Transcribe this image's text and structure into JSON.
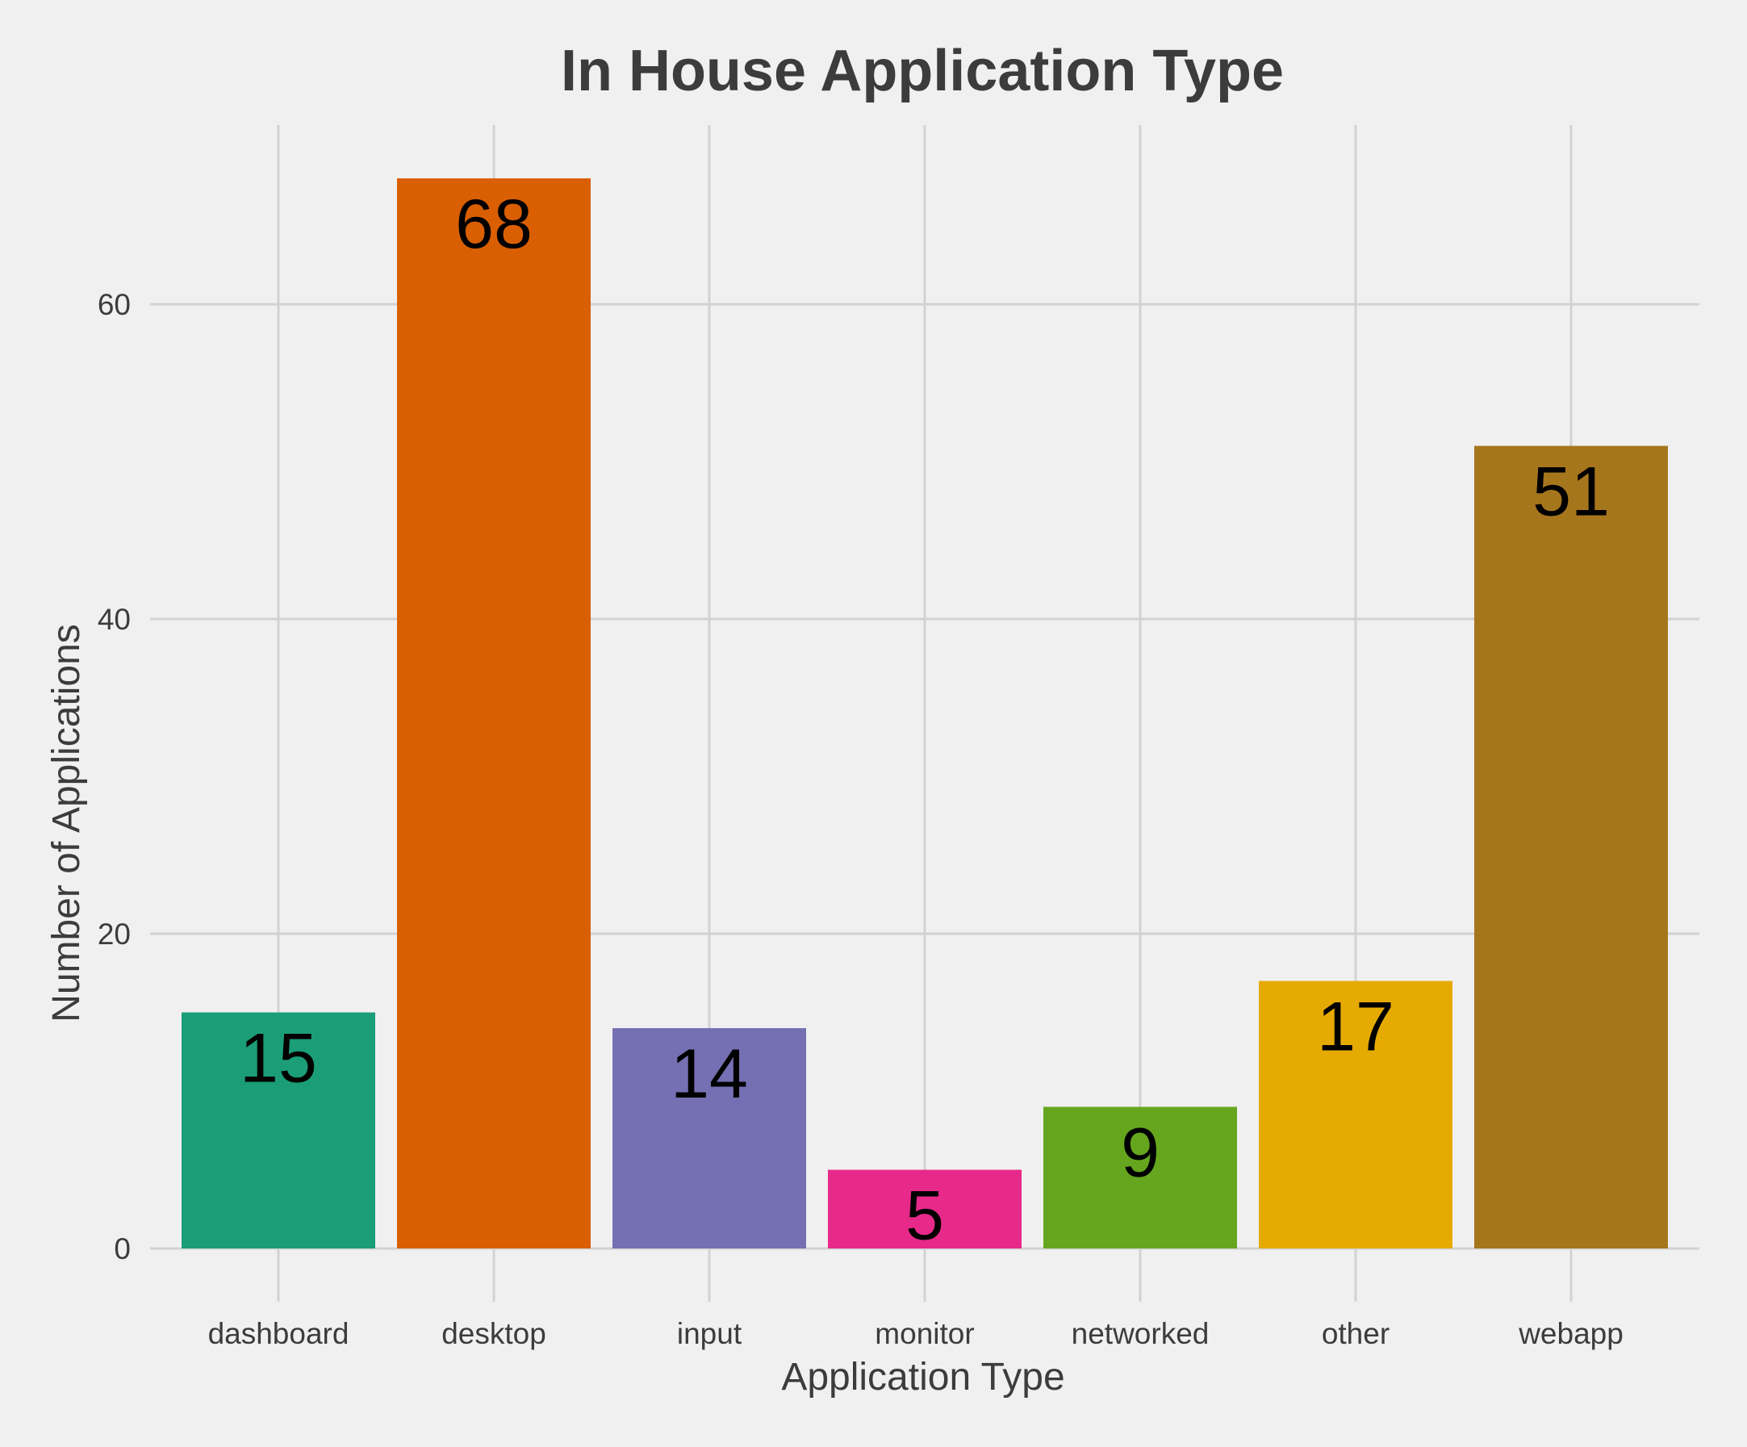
{
  "chart_data": {
    "type": "bar",
    "title": "In House Application Type",
    "xlabel": "Application Type",
    "ylabel": "Number of Applications",
    "categories": [
      "dashboard",
      "desktop",
      "input",
      "monitor",
      "networked",
      "other",
      "webapp"
    ],
    "values": [
      15,
      68,
      14,
      5,
      9,
      17,
      51
    ],
    "value_labels": [
      "15",
      "68",
      "14",
      "5",
      "9",
      "17",
      "51"
    ],
    "colors": [
      "#1b9e77",
      "#d95f02",
      "#7570b3",
      "#e7298a",
      "#66a61e",
      "#e6ab02",
      "#a6761d"
    ],
    "ylim": [
      0,
      71
    ],
    "yticks": [
      0,
      20,
      40,
      60
    ],
    "ytick_labels": [
      "0",
      "20",
      "40",
      "60"
    ],
    "grid": true,
    "legend": "none"
  }
}
